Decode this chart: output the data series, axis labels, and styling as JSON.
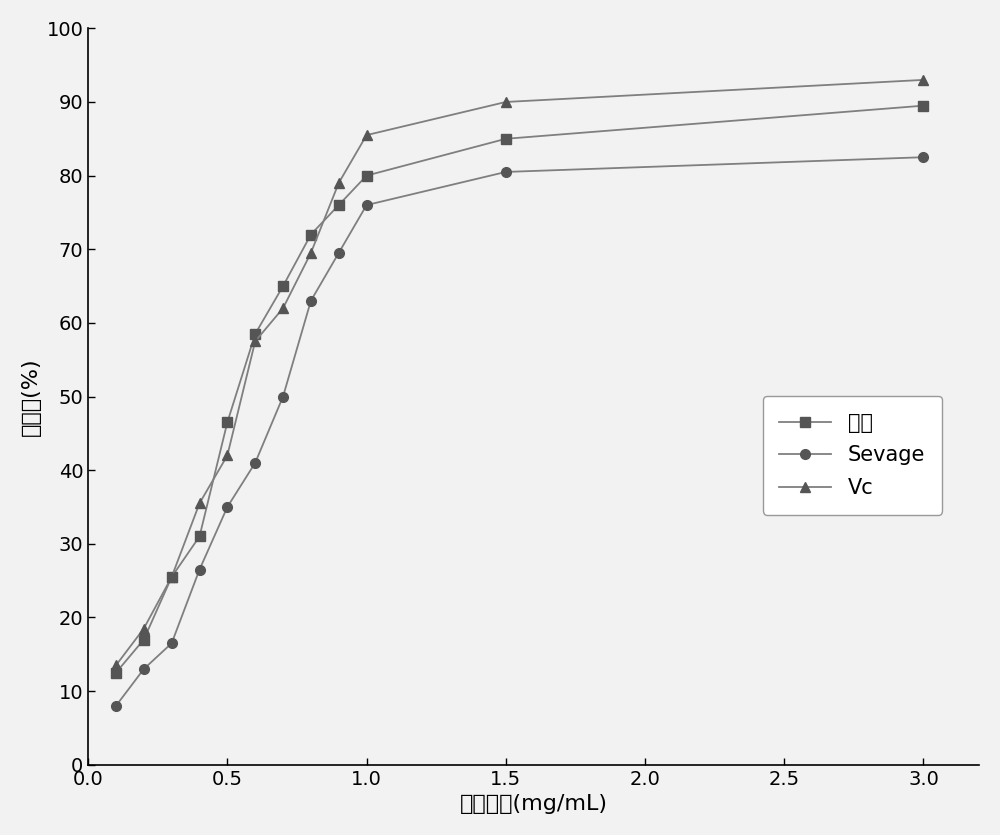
{
  "benfa_x": [
    0.1,
    0.2,
    0.3,
    0.4,
    0.5,
    0.6,
    0.7,
    0.8,
    0.9,
    1.0,
    1.5,
    3.0
  ],
  "benfa_y": [
    12.5,
    17.0,
    25.5,
    31.0,
    46.5,
    58.5,
    65.0,
    72.0,
    76.0,
    80.0,
    85.0,
    89.5
  ],
  "sevage_x": [
    0.1,
    0.2,
    0.3,
    0.4,
    0.5,
    0.6,
    0.7,
    0.8,
    0.9,
    1.0,
    1.5,
    3.0
  ],
  "sevage_y": [
    8.0,
    13.0,
    16.5,
    26.5,
    35.0,
    41.0,
    50.0,
    63.0,
    69.5,
    76.0,
    80.5,
    82.5
  ],
  "vc_x": [
    0.1,
    0.2,
    0.3,
    0.4,
    0.5,
    0.6,
    0.7,
    0.8,
    0.9,
    1.0,
    1.5,
    3.0
  ],
  "vc_y": [
    13.5,
    18.5,
    25.5,
    35.5,
    42.0,
    57.5,
    62.0,
    69.5,
    79.0,
    85.5,
    90.0,
    93.0
  ],
  "xlabel": "样品浓度(mg/mL)",
  "ylabel": "抑制率(%)",
  "xlim": [
    0.05,
    3.2
  ],
  "ylim": [
    0,
    100
  ],
  "xticks": [
    0.0,
    0.5,
    1.0,
    1.5,
    2.0,
    2.5,
    3.0
  ],
  "yticks": [
    0,
    10,
    20,
    30,
    40,
    50,
    60,
    70,
    80,
    90,
    100
  ],
  "legend_labels": [
    "本法",
    "Sevage",
    "Vc"
  ],
  "line_color": "#7f7f7f",
  "marker_color": "#555555",
  "background_color": "#f2f2f2"
}
